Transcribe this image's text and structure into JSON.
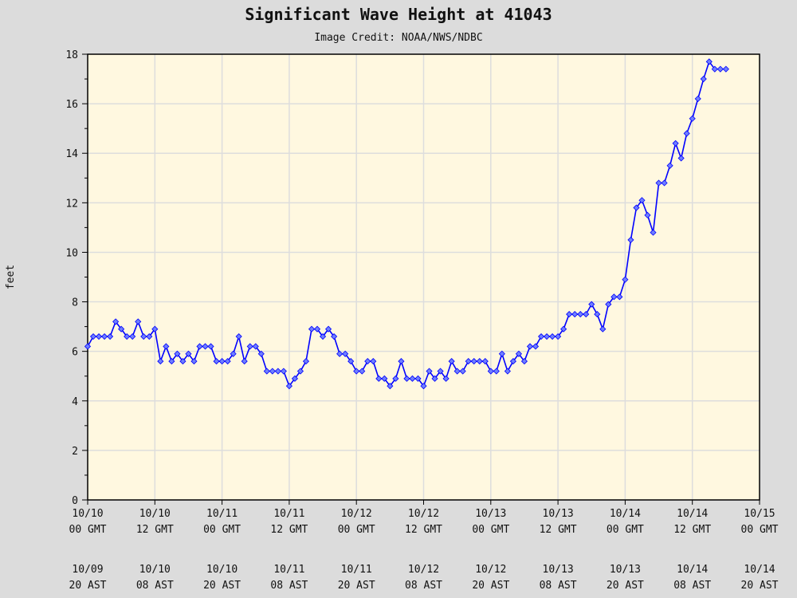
{
  "chart_data": {
    "type": "line",
    "title": "Significant Wave Height at 41043",
    "subtitle": "Image Credit: NOAA/NWS/NDBC",
    "ylabel": "feet",
    "xlabel": "",
    "ylim": [
      0,
      18
    ],
    "yticks": [
      0,
      2,
      4,
      6,
      8,
      10,
      12,
      14,
      16,
      18
    ],
    "grid": true,
    "colors": {
      "line": "#0000ff",
      "marker": "#6f7fff",
      "plot_bg": "#fff8e0",
      "page_bg": "#dcdcdc",
      "grid": "#dddddd"
    },
    "marker": "diamond",
    "xticks_gmt": [
      [
        "10/10",
        "00 GMT"
      ],
      [
        "10/10",
        "12 GMT"
      ],
      [
        "10/11",
        "00 GMT"
      ],
      [
        "10/11",
        "12 GMT"
      ],
      [
        "10/12",
        "00 GMT"
      ],
      [
        "10/12",
        "12 GMT"
      ],
      [
        "10/13",
        "00 GMT"
      ],
      [
        "10/13",
        "12 GMT"
      ],
      [
        "10/14",
        "00 GMT"
      ],
      [
        "10/14",
        "12 GMT"
      ],
      [
        "10/15",
        "00 GMT"
      ]
    ],
    "xticks_ast": [
      [
        "10/09",
        "20 AST"
      ],
      [
        "10/10",
        "08 AST"
      ],
      [
        "10/10",
        "20 AST"
      ],
      [
        "10/11",
        "08 AST"
      ],
      [
        "10/11",
        "20 AST"
      ],
      [
        "10/12",
        "08 AST"
      ],
      [
        "10/12",
        "20 AST"
      ],
      [
        "10/13",
        "08 AST"
      ],
      [
        "10/13",
        "20 AST"
      ],
      [
        "10/14",
        "08 AST"
      ],
      [
        "10/14",
        "20 AST"
      ]
    ],
    "xlim": [
      "10/10 00 GMT",
      "10/15 00 GMT"
    ],
    "series": [
      {
        "x": [
          "10/10 00",
          "10/10 01",
          "10/10 02",
          "10/10 03",
          "10/10 04",
          "10/10 05",
          "10/10 06",
          "10/10 07",
          "10/10 08",
          "10/10 09",
          "10/10 10",
          "10/10 11",
          "10/10 12",
          "10/10 13",
          "10/10 14",
          "10/10 15",
          "10/10 16",
          "10/10 17",
          "10/10 18",
          "10/10 19",
          "10/10 20",
          "10/10 21",
          "10/10 22",
          "10/10 23",
          "10/11 00",
          "10/11 01",
          "10/11 02",
          "10/11 03",
          "10/11 04",
          "10/11 05",
          "10/11 06",
          "10/11 07",
          "10/11 08",
          "10/11 09",
          "10/11 10",
          "10/11 11",
          "10/11 12",
          "10/11 13",
          "10/11 14",
          "10/11 15",
          "10/11 16",
          "10/11 17",
          "10/11 18",
          "10/11 19",
          "10/11 20",
          "10/11 21",
          "10/11 22",
          "10/11 23",
          "10/12 00",
          "10/12 01",
          "10/12 02",
          "10/12 03",
          "10/12 04",
          "10/12 05",
          "10/12 06",
          "10/12 07",
          "10/12 08",
          "10/12 09",
          "10/12 10",
          "10/12 11",
          "10/12 12",
          "10/12 13",
          "10/12 14",
          "10/12 15",
          "10/12 16",
          "10/12 17",
          "10/12 18",
          "10/12 19",
          "10/12 20",
          "10/12 21",
          "10/12 22",
          "10/12 23",
          "10/13 00",
          "10/13 01",
          "10/13 02",
          "10/13 03",
          "10/13 04",
          "10/13 05",
          "10/13 06",
          "10/13 07",
          "10/13 08",
          "10/13 09",
          "10/13 10",
          "10/13 11",
          "10/13 12",
          "10/13 13",
          "10/13 14",
          "10/13 15",
          "10/13 16",
          "10/13 17",
          "10/13 18",
          "10/13 19",
          "10/13 20",
          "10/13 21",
          "10/13 22",
          "10/13 23",
          "10/14 00",
          "10/14 01",
          "10/14 02",
          "10/14 03",
          "10/14 04",
          "10/14 05",
          "10/14 06",
          "10/14 07",
          "10/14 08",
          "10/14 09",
          "10/14 10",
          "10/14 11",
          "10/14 12",
          "10/14 13",
          "10/14 14",
          "10/14 15",
          "10/14 16",
          "10/14 17",
          "10/14 18"
        ],
        "y": [
          6.2,
          6.6,
          6.6,
          6.6,
          6.6,
          7.2,
          6.9,
          6.6,
          6.6,
          7.2,
          6.6,
          6.6,
          6.9,
          5.6,
          6.2,
          5.6,
          5.9,
          5.6,
          5.9,
          5.6,
          6.2,
          6.2,
          6.2,
          5.6,
          5.6,
          5.6,
          5.9,
          6.6,
          5.6,
          6.2,
          6.2,
          5.9,
          5.2,
          5.2,
          5.2,
          5.2,
          4.6,
          4.9,
          5.2,
          5.6,
          6.9,
          6.9,
          6.6,
          6.9,
          6.6,
          5.9,
          5.9,
          5.6,
          5.2,
          5.2,
          5.6,
          5.6,
          4.9,
          4.9,
          4.6,
          4.9,
          5.6,
          4.9,
          4.9,
          4.9,
          4.6,
          5.2,
          4.9,
          5.2,
          4.9,
          5.6,
          5.2,
          5.2,
          5.6,
          5.6,
          5.6,
          5.6,
          5.2,
          5.2,
          5.9,
          5.2,
          5.6,
          5.9,
          5.6,
          6.2,
          6.2,
          6.6,
          6.6,
          6.6,
          6.6,
          6.9,
          7.5,
          7.5,
          7.5,
          7.5,
          7.9,
          7.5,
          6.9,
          7.9,
          8.2,
          8.2,
          8.9,
          10.5,
          11.8,
          12.1,
          11.5,
          10.8,
          12.8,
          12.8,
          13.5,
          14.4,
          13.8,
          14.8,
          15.4,
          16.2,
          17.0,
          17.7,
          17.4,
          17.4,
          17.4
        ]
      }
    ]
  }
}
